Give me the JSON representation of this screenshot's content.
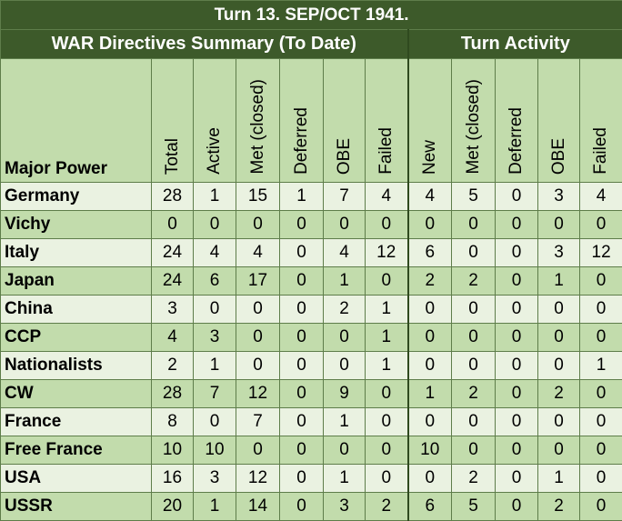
{
  "title": "Turn 13.  SEP/OCT 1941.",
  "group_headers": {
    "summary": "WAR Directives Summary (To Date)",
    "activity": "Turn Activity"
  },
  "columns": {
    "power": "Major Power",
    "summary": [
      "Total",
      "Active",
      "Met (closed)",
      "Deferred",
      "OBE",
      "Failed"
    ],
    "activity": [
      "New",
      "Met (closed)",
      "Deferred",
      "OBE",
      "Failed"
    ]
  },
  "rows": [
    {
      "name": "Germany",
      "values": [
        "28",
        "1",
        "15",
        "1",
        "7",
        "4",
        "4",
        "5",
        "0",
        "3",
        "4"
      ]
    },
    {
      "name": "Vichy",
      "values": [
        "0",
        "0",
        "0",
        "0",
        "0",
        "0",
        "0",
        "0",
        "0",
        "0",
        "0"
      ]
    },
    {
      "name": "Italy",
      "values": [
        "24",
        "4",
        "4",
        "0",
        "4",
        "12",
        "6",
        "0",
        "0",
        "3",
        "12"
      ]
    },
    {
      "name": "Japan",
      "values": [
        "24",
        "6",
        "17",
        "0",
        "1",
        "0",
        "2",
        "2",
        "0",
        "1",
        "0"
      ]
    },
    {
      "name": "China",
      "values": [
        "3",
        "0",
        "0",
        "0",
        "2",
        "1",
        "0",
        "0",
        "0",
        "0",
        "0"
      ]
    },
    {
      "name": "CCP",
      "values": [
        "4",
        "3",
        "0",
        "0",
        "0",
        "1",
        "0",
        "0",
        "0",
        "0",
        "0"
      ]
    },
    {
      "name": "Nationalists",
      "values": [
        "2",
        "1",
        "0",
        "0",
        "0",
        "1",
        "0",
        "0",
        "0",
        "0",
        "1"
      ]
    },
    {
      "name": "CW",
      "values": [
        "28",
        "7",
        "12",
        "0",
        "9",
        "0",
        "1",
        "2",
        "0",
        "2",
        "0"
      ]
    },
    {
      "name": "France",
      "values": [
        "8",
        "0",
        "7",
        "0",
        "1",
        "0",
        "0",
        "0",
        "0",
        "0",
        "0"
      ]
    },
    {
      "name": "Free France",
      "values": [
        "10",
        "10",
        "0",
        "0",
        "0",
        "0",
        "10",
        "0",
        "0",
        "0",
        "0"
      ]
    },
    {
      "name": "USA",
      "values": [
        "16",
        "3",
        "12",
        "0",
        "1",
        "0",
        "0",
        "2",
        "0",
        "1",
        "0"
      ]
    },
    {
      "name": "USSR",
      "values": [
        "20",
        "1",
        "14",
        "0",
        "3",
        "2",
        "6",
        "5",
        "0",
        "2",
        "0"
      ]
    }
  ]
}
